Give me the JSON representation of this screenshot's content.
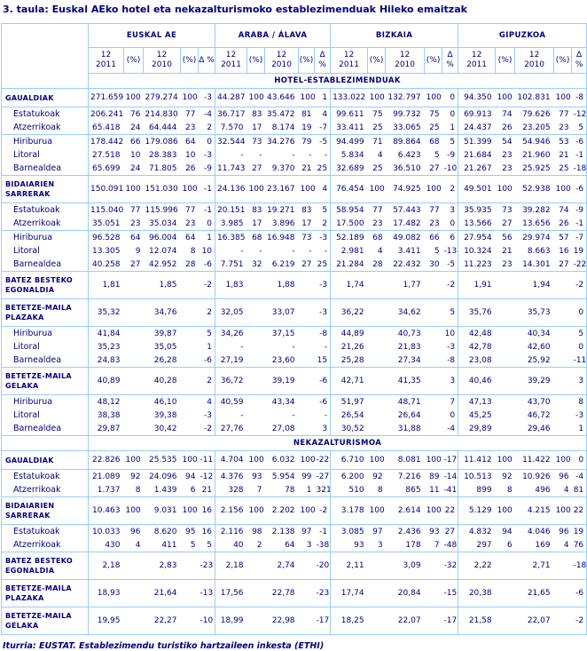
{
  "title": "3. taula: Euskal AEko hotel eta nekazalturismoko establezimenduak Hileko emaitzak",
  "footer": "Iturria: EUSTAT. Establezimendu turistiko hartzaileen inkesta (ETHI)",
  "colors": {
    "text": "#000080",
    "border": "#99ccff",
    "background": "#ffffff"
  },
  "table": {
    "column_groups": [
      "EUSKAL AE",
      "ARABA / ÁLAVA",
      "BIZKAIA",
      "GIPUZKOA"
    ],
    "sub_headers": [
      "12\n2011",
      "(%)",
      "12\n2010",
      "(%)",
      "Δ %"
    ],
    "sections": [
      {
        "title": "HOTEL-ESTABLEZIMENDUAK",
        "rows": [
          {
            "label": "GAUALDIAK",
            "style": "main",
            "sep": true,
            "cells": [
              "271.659",
              "100",
              "279.274",
              "100",
              "-3",
              "44.287",
              "100",
              "43.646",
              "100",
              "1",
              "133.022",
              "100",
              "132.797",
              "100",
              "0",
              "94.350",
              "100",
              "102.831",
              "100",
              "-8"
            ]
          },
          {
            "label": "Estatukoak",
            "style": "sub",
            "sep": true,
            "cells": [
              "206.241",
              "76",
              "214.830",
              "77",
              "-4",
              "36.717",
              "83",
              "35.472",
              "81",
              "4",
              "99.611",
              "75",
              "99.732",
              "75",
              "0",
              "69.913",
              "74",
              "79.626",
              "77",
              "-12"
            ]
          },
          {
            "label": "Atzerrikoak",
            "style": "sub",
            "sep": false,
            "cells": [
              "65.418",
              "24",
              "64.444",
              "23",
              "2",
              "7.570",
              "17",
              "8.174",
              "19",
              "-7",
              "33.411",
              "25",
              "33.065",
              "25",
              "1",
              "24.437",
              "26",
              "23.205",
              "23",
              "5"
            ]
          },
          {
            "label": "Hiriburua",
            "style": "sub",
            "sep": true,
            "cells": [
              "178.442",
              "66",
              "179.086",
              "64",
              "0",
              "32.544",
              "73",
              "34.276",
              "79",
              "-5",
              "94.499",
              "71",
              "89.864",
              "68",
              "5",
              "51.399",
              "54",
              "54.946",
              "53",
              "-6"
            ]
          },
          {
            "label": "Litoral",
            "style": "sub",
            "sep": false,
            "cells": [
              "27.518",
              "10",
              "28.383",
              "10",
              "-3",
              "-",
              "-",
              "-",
              "-",
              "-",
              "5.834",
              "4",
              "6.423",
              "5",
              "-9",
              "21.684",
              "23",
              "21.960",
              "21",
              "-1"
            ]
          },
          {
            "label": "Barnealdea",
            "style": "sub",
            "sep": false,
            "cells": [
              "65.699",
              "24",
              "71.805",
              "26",
              "-9",
              "11.743",
              "27",
              "9.370",
              "21",
              "25",
              "32.689",
              "25",
              "36.510",
              "27",
              "-10",
              "21.267",
              "23",
              "25.925",
              "25",
              "-18"
            ]
          },
          {
            "label": "BIDAIARIEN SARRERAK",
            "style": "main",
            "sep": true,
            "cells": [
              "150.091",
              "100",
              "151.030",
              "100",
              "-1",
              "24.136",
              "100",
              "23.167",
              "100",
              "4",
              "76.454",
              "100",
              "74.925",
              "100",
              "2",
              "49.501",
              "100",
              "52.938",
              "100",
              "-6"
            ]
          },
          {
            "label": "Estatukoak",
            "style": "sub",
            "sep": true,
            "cells": [
              "115.040",
              "77",
              "115.996",
              "77",
              "-1",
              "20.151",
              "83",
              "19.271",
              "83",
              "5",
              "58.954",
              "77",
              "57.443",
              "77",
              "3",
              "35.935",
              "73",
              "39.282",
              "74",
              "-9"
            ]
          },
          {
            "label": "Atzerrikoak",
            "style": "sub",
            "sep": false,
            "cells": [
              "35.051",
              "23",
              "35.034",
              "23",
              "0",
              "3.985",
              "17",
              "3.896",
              "17",
              "2",
              "17.500",
              "23",
              "17.482",
              "23",
              "0",
              "13.566",
              "27",
              "13.656",
              "26",
              "-1"
            ]
          },
          {
            "label": "Hiriburua",
            "style": "sub",
            "sep": true,
            "cells": [
              "96.528",
              "64",
              "96.004",
              "64",
              "1",
              "16.385",
              "68",
              "16.948",
              "73",
              "-3",
              "52.189",
              "68",
              "49.082",
              "66",
              "6",
              "27.954",
              "56",
              "29.974",
              "57",
              "-7"
            ]
          },
          {
            "label": "Litoral",
            "style": "sub",
            "sep": false,
            "cells": [
              "13.305",
              "9",
              "12.074",
              "8",
              "10",
              "-",
              "-",
              "-",
              "-",
              "-",
              "2.981",
              "4",
              "3.411",
              "5",
              "-13",
              "10.324",
              "21",
              "8.663",
              "16",
              "19"
            ]
          },
          {
            "label": "Barnealdea",
            "style": "sub",
            "sep": false,
            "cells": [
              "40.258",
              "27",
              "42.952",
              "28",
              "-6",
              "7.751",
              "32",
              "6.219",
              "27",
              "25",
              "21.284",
              "28",
              "22.432",
              "30",
              "-5",
              "11.223",
              "23",
              "14.301",
              "27",
              "-22"
            ]
          },
          {
            "label": "BATEZ BESTEKO EGONALDIA",
            "style": "main",
            "sep": true,
            "cells": [
              "1,81",
              "",
              "1,85",
              "",
              "-2",
              "1,83",
              "",
              "1,88",
              "",
              "-3",
              "1,74",
              "",
              "1,77",
              "",
              "-2",
              "1,91",
              "",
              "1,94",
              "",
              "-2"
            ]
          },
          {
            "label": "BETETZE-MAILA PLAZAKA",
            "style": "main",
            "sep": true,
            "cells": [
              "35,32",
              "",
              "34,76",
              "",
              "2",
              "32,05",
              "",
              "33,07",
              "",
              "-3",
              "36,22",
              "",
              "34,62",
              "",
              "5",
              "35,76",
              "",
              "35,73",
              "",
              "0"
            ]
          },
          {
            "label": "Hiriburua",
            "style": "sub",
            "sep": true,
            "cells": [
              "41,84",
              "",
              "39,87",
              "",
              "5",
              "34,26",
              "",
              "37,15",
              "",
              "-8",
              "44,89",
              "",
              "40,73",
              "",
              "10",
              "42,48",
              "",
              "40,34",
              "",
              "5"
            ]
          },
          {
            "label": "Litoral",
            "style": "sub",
            "sep": false,
            "cells": [
              "35,23",
              "",
              "35,05",
              "",
              "1",
              "-",
              "",
              "-",
              "",
              "-",
              "21,26",
              "",
              "21,83",
              "",
              "-3",
              "42,78",
              "",
              "42,60",
              "",
              "0"
            ]
          },
          {
            "label": "Barnealdea",
            "style": "sub",
            "sep": false,
            "cells": [
              "24,83",
              "",
              "26,28",
              "",
              "-6",
              "27,19",
              "",
              "23,60",
              "",
              "15",
              "25,28",
              "",
              "27,34",
              "",
              "-8",
              "23,08",
              "",
              "25,92",
              "",
              "-11"
            ]
          },
          {
            "label": "BETETZE-MAILA GELAKA",
            "style": "main",
            "sep": true,
            "cells": [
              "40,89",
              "",
              "40,28",
              "",
              "2",
              "36,72",
              "",
              "39,19",
              "",
              "-6",
              "42,71",
              "",
              "41,35",
              "",
              "3",
              "40,46",
              "",
              "39,29",
              "",
              "3"
            ]
          },
          {
            "label": "Hiriburua",
            "style": "sub",
            "sep": true,
            "cells": [
              "48,12",
              "",
              "46,10",
              "",
              "4",
              "40,59",
              "",
              "43,34",
              "",
              "-6",
              "51,97",
              "",
              "48,71",
              "",
              "7",
              "47,13",
              "",
              "43,70",
              "",
              "8"
            ]
          },
          {
            "label": "Litoral",
            "style": "sub",
            "sep": false,
            "cells": [
              "38,38",
              "",
              "39,38",
              "",
              "-3",
              "-",
              "",
              "-",
              "",
              "-",
              "26,54",
              "",
              "26,64",
              "",
              "0",
              "45,25",
              "",
              "46,72",
              "",
              "-3"
            ]
          },
          {
            "label": "Barnealdea",
            "style": "sub",
            "sep": false,
            "cells": [
              "29,87",
              "",
              "30,42",
              "",
              "-2",
              "27,76",
              "",
              "27,08",
              "",
              "3",
              "30,52",
              "",
              "31,88",
              "",
              "-4",
              "29,89",
              "",
              "29,46",
              "",
              "1"
            ]
          }
        ]
      },
      {
        "title": "NEKAZALTURISMOA",
        "rows": [
          {
            "label": "GAUALDIAK",
            "style": "main",
            "sep": true,
            "cells": [
              "22.826",
              "100",
              "25.535",
              "100",
              "-11",
              "4.704",
              "100",
              "6.032",
              "100",
              "-22",
              "6.710",
              "100",
              "8.081",
              "100",
              "-17",
              "11.412",
              "100",
              "11.422",
              "100",
              "0"
            ]
          },
          {
            "label": "Estatukoak",
            "style": "sub",
            "sep": true,
            "cells": [
              "21.089",
              "92",
              "24.096",
              "94",
              "-12",
              "4.376",
              "93",
              "5.954",
              "99",
              "-27",
              "6.200",
              "92",
              "7.216",
              "89",
              "-14",
              "10.513",
              "92",
              "10.926",
              "96",
              "-4"
            ]
          },
          {
            "label": "Atzerrikoak",
            "style": "sub",
            "sep": false,
            "cells": [
              "1.737",
              "8",
              "1.439",
              "6",
              "21",
              "328",
              "7",
              "78",
              "1",
              "321",
              "510",
              "8",
              "865",
              "11",
              "-41",
              "899",
              "8",
              "496",
              "4",
              "81"
            ]
          },
          {
            "label": "BIDAIARIEN SARRERAK",
            "style": "main",
            "sep": true,
            "cells": [
              "10.463",
              "100",
              "9.031",
              "100",
              "16",
              "2.156",
              "100",
              "2.202",
              "100",
              "-2",
              "3.178",
              "100",
              "2.614",
              "100",
              "22",
              "5.129",
              "100",
              "4.215",
              "100",
              "22"
            ]
          },
          {
            "label": "Estatukoak",
            "style": "sub",
            "sep": true,
            "cells": [
              "10.033",
              "96",
              "8.620",
              "95",
              "16",
              "2.116",
              "98",
              "2.138",
              "97",
              "-1",
              "3.085",
              "97",
              "2.436",
              "93",
              "27",
              "4.832",
              "94",
              "4.046",
              "96",
              "19"
            ]
          },
          {
            "label": "Atzerrikoak",
            "style": "sub",
            "sep": false,
            "cells": [
              "430",
              "4",
              "411",
              "5",
              "5",
              "40",
              "2",
              "64",
              "3",
              "-38",
              "93",
              "3",
              "178",
              "7",
              "-48",
              "297",
              "6",
              "169",
              "4",
              "76"
            ]
          },
          {
            "label": "BATEZ BESTEKO EGONALDIA",
            "style": "main",
            "sep": true,
            "cells": [
              "2,18",
              "",
              "2,83",
              "",
              "-23",
              "2,18",
              "",
              "2,74",
              "",
              "-20",
              "2,11",
              "",
              "3,09",
              "",
              "-32",
              "2,22",
              "",
              "2,71",
              "",
              "-18"
            ]
          },
          {
            "label": "BETETZE-MAILA PLAZAKA",
            "style": "main",
            "sep": true,
            "cells": [
              "18,93",
              "",
              "21,64",
              "",
              "-13",
              "17,56",
              "",
              "22,78",
              "",
              "-23",
              "17,74",
              "",
              "20,84",
              "",
              "-15",
              "20,38",
              "",
              "21,65",
              "",
              "-6"
            ]
          },
          {
            "label": "BETETZE-MAILA GELAKA",
            "style": "main",
            "sep": true,
            "cells": [
              "19,95",
              "",
              "22,27",
              "",
              "-10",
              "18,99",
              "",
              "22,98",
              "",
              "-17",
              "18,25",
              "",
              "22,07",
              "",
              "-17",
              "21,58",
              "",
              "22,07",
              "",
              "-2"
            ]
          }
        ]
      }
    ]
  }
}
